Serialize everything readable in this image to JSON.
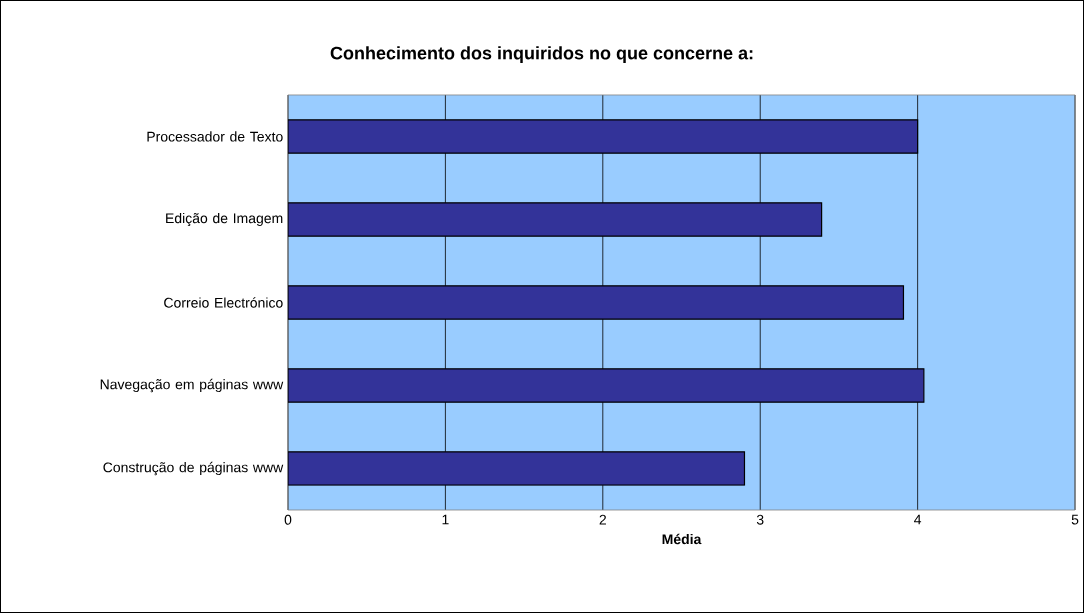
{
  "chart_data": {
    "type": "bar",
    "orientation": "horizontal",
    "title": "Conhecimento dos inquiridos no que concerne a:",
    "xlabel": "Média",
    "categories": [
      "Processador de Texto",
      "Edição de Imagem",
      "Correio Electrónico",
      "Navegação em páginas www",
      "Construção de páginas www"
    ],
    "values": [
      4.0,
      3.39,
      3.91,
      4.04,
      2.9
    ],
    "color": "#333399",
    "xlim": [
      0,
      5
    ],
    "xticks": [
      0,
      1,
      2,
      3,
      4,
      5
    ],
    "grid": "x"
  }
}
